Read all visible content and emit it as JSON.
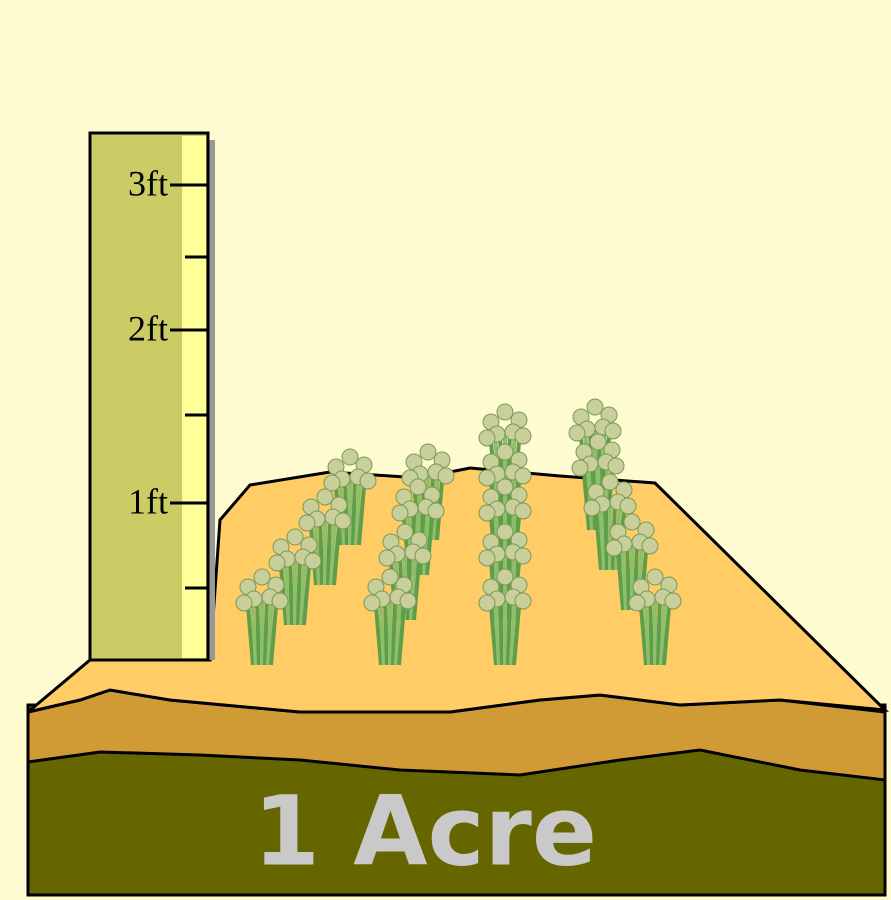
{
  "ruler": {
    "labels": [
      "3ft",
      "2ft",
      "1ft"
    ]
  },
  "field": {
    "label": "1 Acre"
  }
}
